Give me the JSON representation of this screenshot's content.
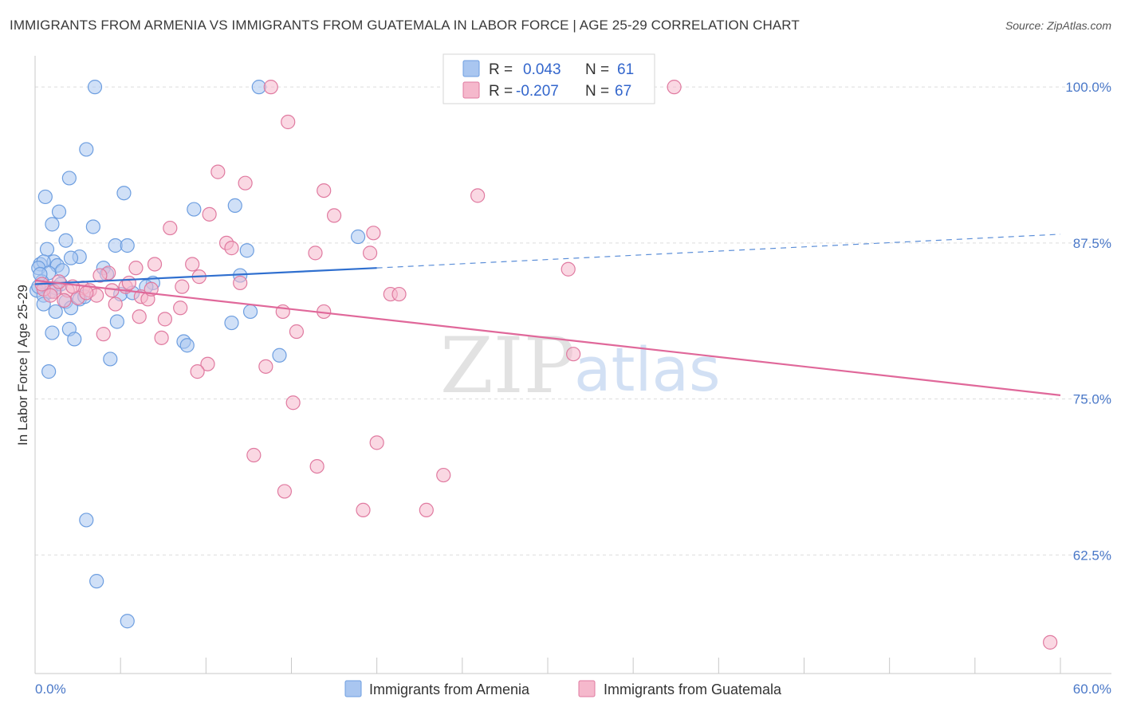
{
  "header": {
    "title": "IMMIGRANTS FROM ARMENIA VS IMMIGRANTS FROM GUATEMALA IN LABOR FORCE | AGE 25-29 CORRELATION CHART",
    "source": "Source: ZipAtlas.com"
  },
  "watermark": {
    "zip": "ZIP",
    "atlas": "atlas"
  },
  "legend": {
    "rows": [
      {
        "r_label": "R =",
        "r_value": "0.043",
        "n_label": "N =",
        "n_value": "61",
        "color": "#a9c6f0"
      },
      {
        "r_label": "R =",
        "r_value": "-0.207",
        "n_label": "N =",
        "n_value": "67",
        "color": "#f5b8cc"
      }
    ]
  },
  "bottom_legend": {
    "items": [
      {
        "label": "Immigrants from Armenia",
        "color": "#a9c6f0"
      },
      {
        "label": "Immigrants from Guatemala",
        "color": "#f5b8cc"
      }
    ]
  },
  "chart_data": {
    "type": "scatter",
    "title": "IMMIGRANTS FROM ARMENIA VS IMMIGRANTS FROM GUATEMALA IN LABOR FORCE | AGE 25-29 CORRELATION CHART",
    "xlabel": "",
    "ylabel": "In Labor Force | Age 25-29",
    "xlim": [
      0,
      60
    ],
    "ylim": [
      53,
      102.5
    ],
    "x_tick_labels": [
      "0.0%",
      "60.0%"
    ],
    "y_ticks": [
      62.5,
      75.0,
      87.5,
      100.0
    ],
    "y_tick_labels": [
      "62.5%",
      "75.0%",
      "87.5%",
      "100.0%"
    ],
    "grid": true,
    "legend_position": "top-center",
    "series": [
      {
        "name": "Immigrants from Armenia",
        "color": "#6d9ee0",
        "fill": "#a9c6f0",
        "trend": {
          "x0": 0,
          "y0": 84.2,
          "x1": 20,
          "y1": 85.5,
          "dash_x1": 60,
          "dash_y1": 88.2
        },
        "points": [
          [
            3.5,
            100.0
          ],
          [
            13.1,
            100.0
          ],
          [
            3.0,
            95.0
          ],
          [
            2.0,
            92.7
          ],
          [
            0.6,
            91.2
          ],
          [
            5.2,
            91.5
          ],
          [
            9.3,
            90.2
          ],
          [
            11.7,
            90.5
          ],
          [
            1.4,
            90.0
          ],
          [
            1.0,
            89.0
          ],
          [
            3.4,
            88.8
          ],
          [
            1.8,
            87.7
          ],
          [
            18.9,
            88.0
          ],
          [
            4.7,
            87.3
          ],
          [
            5.4,
            87.3
          ],
          [
            0.7,
            87.0
          ],
          [
            12.4,
            86.9
          ],
          [
            2.6,
            86.4
          ],
          [
            2.1,
            86.3
          ],
          [
            1.1,
            86.0
          ],
          [
            0.3,
            85.8
          ],
          [
            0.5,
            86.0
          ],
          [
            1.3,
            85.7
          ],
          [
            0.2,
            85.5
          ],
          [
            4.0,
            85.5
          ],
          [
            1.6,
            85.3
          ],
          [
            0.8,
            85.1
          ],
          [
            4.2,
            85.0
          ],
          [
            12.0,
            84.9
          ],
          [
            0.4,
            84.4
          ],
          [
            6.9,
            84.3
          ],
          [
            1.2,
            83.9
          ],
          [
            0.1,
            83.7
          ],
          [
            0.9,
            83.6
          ],
          [
            0.5,
            83.3
          ],
          [
            5.0,
            83.4
          ],
          [
            5.7,
            83.5
          ],
          [
            2.6,
            83.0
          ],
          [
            1.8,
            82.8
          ],
          [
            0.5,
            82.6
          ],
          [
            2.1,
            82.3
          ],
          [
            1.2,
            82.0
          ],
          [
            12.6,
            82.0
          ],
          [
            4.8,
            81.2
          ],
          [
            11.5,
            81.1
          ],
          [
            2.0,
            80.6
          ],
          [
            1.0,
            80.3
          ],
          [
            2.3,
            79.8
          ],
          [
            8.7,
            79.6
          ],
          [
            8.9,
            79.3
          ],
          [
            14.3,
            78.5
          ],
          [
            4.4,
            78.2
          ],
          [
            0.8,
            77.2
          ],
          [
            3.0,
            65.3
          ],
          [
            3.6,
            60.4
          ],
          [
            5.4,
            57.2
          ],
          [
            0.2,
            84.0
          ],
          [
            1.5,
            84.2
          ],
          [
            2.9,
            83.2
          ],
          [
            6.5,
            84.0
          ],
          [
            0.3,
            85.0
          ]
        ]
      },
      {
        "name": "Immigrants from Guatemala",
        "color": "#e07aa0",
        "fill": "#f5b8cc",
        "trend": {
          "x0": 0,
          "y0": 84.5,
          "x1": 60,
          "y1": 75.3
        },
        "points": [
          [
            13.8,
            100.0
          ],
          [
            37.4,
            100.0
          ],
          [
            14.8,
            97.2
          ],
          [
            10.7,
            93.2
          ],
          [
            12.3,
            92.3
          ],
          [
            16.9,
            91.7
          ],
          [
            25.9,
            91.3
          ],
          [
            10.2,
            89.8
          ],
          [
            17.5,
            89.7
          ],
          [
            7.9,
            88.7
          ],
          [
            19.8,
            88.3
          ],
          [
            11.2,
            87.5
          ],
          [
            11.5,
            87.1
          ],
          [
            16.4,
            86.7
          ],
          [
            19.6,
            86.7
          ],
          [
            7.0,
            85.8
          ],
          [
            9.2,
            85.8
          ],
          [
            5.9,
            85.5
          ],
          [
            4.3,
            85.1
          ],
          [
            3.8,
            84.9
          ],
          [
            31.2,
            85.4
          ],
          [
            9.6,
            84.8
          ],
          [
            12.0,
            84.3
          ],
          [
            8.6,
            84.0
          ],
          [
            5.3,
            84.0
          ],
          [
            2.8,
            83.9
          ],
          [
            3.2,
            83.7
          ],
          [
            1.9,
            83.7
          ],
          [
            1.1,
            83.6
          ],
          [
            0.5,
            83.8
          ],
          [
            0.9,
            83.3
          ],
          [
            3.6,
            83.3
          ],
          [
            2.5,
            83.1
          ],
          [
            6.2,
            83.2
          ],
          [
            6.6,
            83.0
          ],
          [
            20.8,
            83.4
          ],
          [
            21.3,
            83.4
          ],
          [
            1.7,
            82.9
          ],
          [
            4.7,
            82.6
          ],
          [
            8.5,
            82.3
          ],
          [
            14.5,
            82.0
          ],
          [
            16.9,
            82.0
          ],
          [
            6.1,
            81.6
          ],
          [
            7.6,
            81.4
          ],
          [
            15.3,
            80.4
          ],
          [
            4.0,
            80.2
          ],
          [
            7.4,
            79.9
          ],
          [
            31.5,
            78.6
          ],
          [
            10.1,
            77.8
          ],
          [
            13.5,
            77.6
          ],
          [
            9.5,
            77.2
          ],
          [
            15.1,
            74.7
          ],
          [
            20.0,
            71.5
          ],
          [
            12.8,
            70.5
          ],
          [
            23.9,
            68.9
          ],
          [
            16.5,
            69.6
          ],
          [
            14.6,
            67.6
          ],
          [
            19.2,
            66.1
          ],
          [
            22.9,
            66.1
          ],
          [
            59.4,
            55.5
          ],
          [
            0.4,
            84.2
          ],
          [
            2.2,
            84.0
          ],
          [
            3.0,
            83.5
          ],
          [
            5.5,
            84.3
          ],
          [
            6.8,
            83.8
          ],
          [
            1.4,
            84.4
          ],
          [
            4.5,
            83.7
          ]
        ]
      }
    ]
  }
}
